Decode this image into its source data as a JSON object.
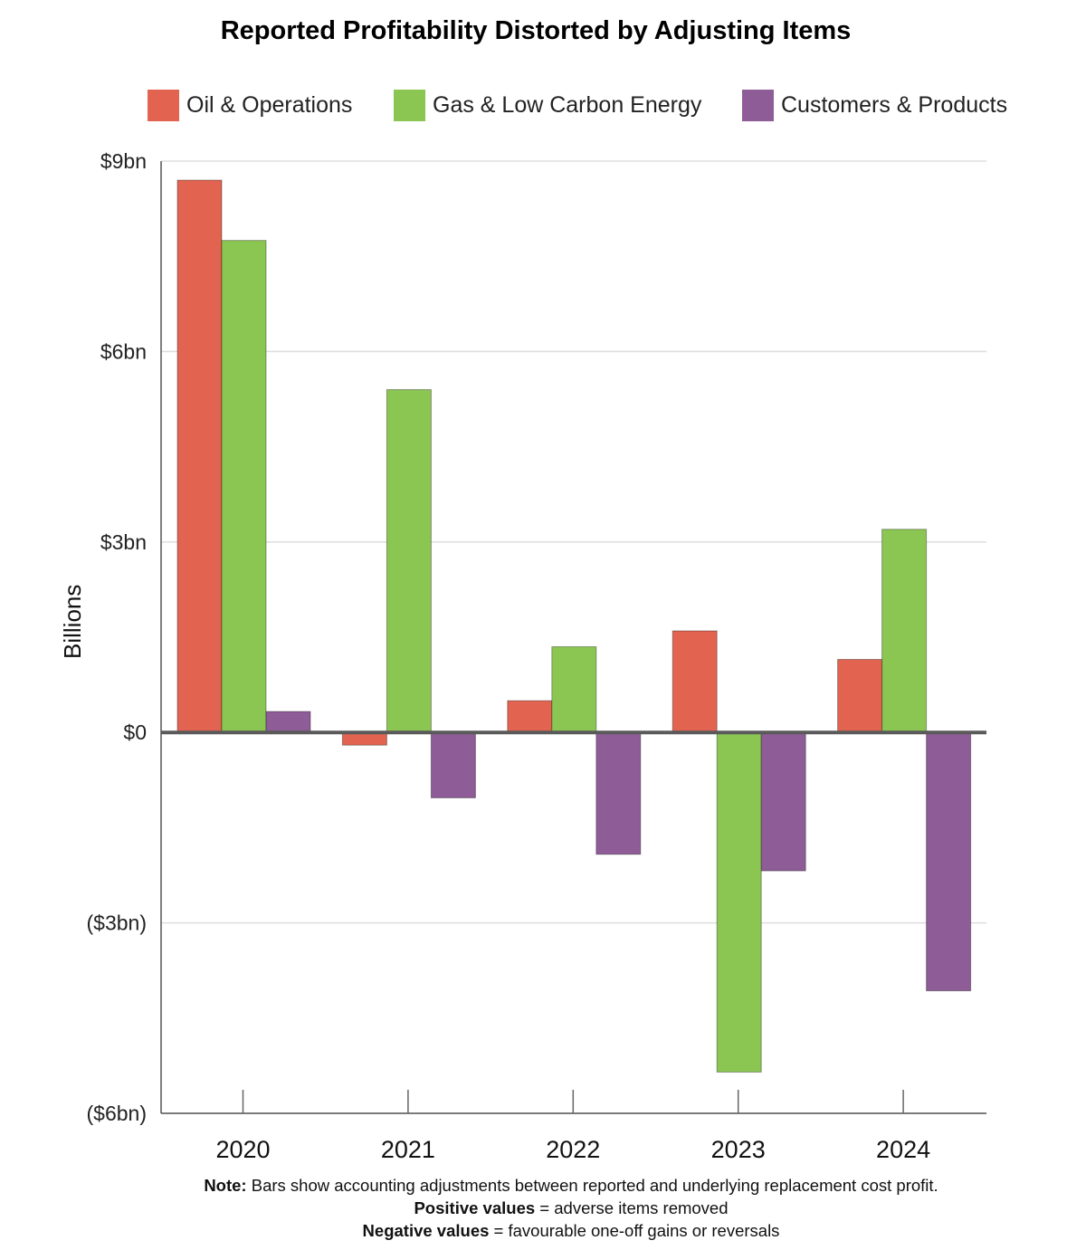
{
  "chart_data": {
    "type": "bar",
    "title": "Reported Profitability Distorted by Adjusting Items",
    "ylabel": "Billions",
    "xlabel": "",
    "categories": [
      "2020",
      "2021",
      "2022",
      "2023",
      "2024"
    ],
    "ylim": [
      -6,
      9
    ],
    "yticks": [
      9,
      6,
      3,
      0,
      -3,
      -6
    ],
    "ytick_labels": [
      "$9bn",
      "$6bn",
      "$3bn",
      "$0",
      "($3bn)",
      "($6bn)"
    ],
    "grid": true,
    "legend_position": "top",
    "series": [
      {
        "name": "Oil & Operations",
        "color": "#e26450",
        "values": [
          8.7,
          -0.2,
          0.5,
          1.6,
          1.15
        ]
      },
      {
        "name": "Gas & Low Carbon Energy",
        "color": "#8bc653",
        "values": [
          7.75,
          5.4,
          1.35,
          -5.35,
          3.2
        ]
      },
      {
        "name": "Customers & Products",
        "color": "#8e5c96",
        "values": [
          0.33,
          -1.03,
          -1.92,
          -2.18,
          -4.07
        ]
      }
    ]
  },
  "notes": {
    "line1_bold": "Note:",
    "line1_text": " Bars show accounting adjustments between reported and underlying replacement cost profit.",
    "line2_bold": "Positive values",
    "line2_text": " = adverse items removed",
    "line3_bold": "Negative values",
    "line3_text": " = favourable one-off gains or reversals"
  }
}
